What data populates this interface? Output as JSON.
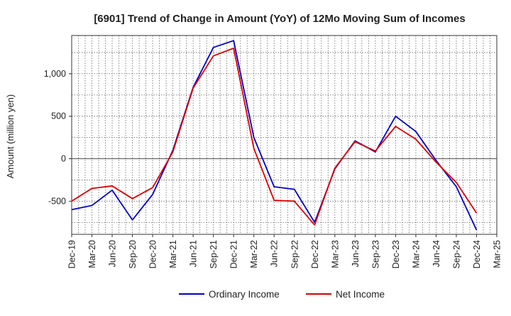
{
  "chart_data": {
    "type": "line",
    "title": "[6901]  Trend of Change in Amount (YoY) of 12Mo Moving Sum of Incomes",
    "xlabel": "",
    "ylabel": "Amount (million yen)",
    "categories": [
      "Dec-19",
      "Mar-20",
      "Jun-20",
      "Sep-20",
      "Dec-20",
      "Mar-21",
      "Jun-21",
      "Sep-21",
      "Dec-21",
      "Mar-22",
      "Jun-22",
      "Sep-22",
      "Dec-22",
      "Mar-23",
      "Jun-23",
      "Sep-23",
      "Dec-23",
      "Mar-24",
      "Jun-24",
      "Sep-24",
      "Dec-24",
      "Mar-25"
    ],
    "y_ticks": [
      -500,
      0,
      500,
      1000
    ],
    "y_tick_labels": [
      "-500",
      "0",
      "500",
      "1,000"
    ],
    "ylim": [
      -890,
      1450
    ],
    "grid": true,
    "legend_position": "bottom",
    "series": [
      {
        "name": "Ordinary Income",
        "color": "#0000cc",
        "values": [
          -600,
          -550,
          -370,
          -720,
          -420,
          100,
          840,
          1310,
          1390,
          250,
          -330,
          -360,
          -750,
          -120,
          210,
          80,
          500,
          320,
          -20,
          -330,
          -840,
          null
        ]
      },
      {
        "name": "Net Income",
        "color": "#dd0000",
        "values": [
          -500,
          -350,
          -320,
          -470,
          -340,
          80,
          830,
          1210,
          1300,
          120,
          -490,
          -500,
          -780,
          -110,
          200,
          90,
          380,
          230,
          -40,
          -280,
          -640,
          null
        ]
      }
    ]
  }
}
